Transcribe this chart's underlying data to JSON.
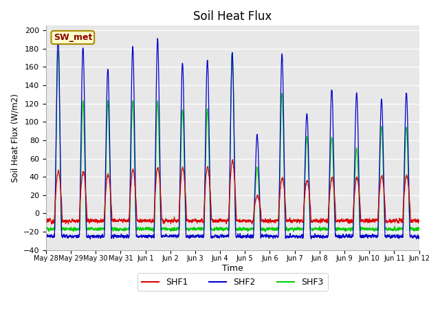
{
  "title": "Soil Heat Flux",
  "ylabel": "Soil Heat Flux (W/m2)",
  "xlabel": "Time",
  "ylim": [
    -40,
    205
  ],
  "yticks": [
    -40,
    -20,
    0,
    20,
    40,
    60,
    80,
    100,
    120,
    140,
    160,
    180,
    200
  ],
  "background_color": "#e8e8e8",
  "fig_background": "#ffffff",
  "colors": {
    "SHF1": "#dd0000",
    "SHF2": "#0000cc",
    "SHF3": "#00cc00"
  },
  "x_tick_labels": [
    "May 28",
    "May 29",
    "May 30",
    "May 31",
    "Jun 1",
    "Jun 2",
    "Jun 3",
    "Jun 4",
    "Jun 5",
    "Jun 6",
    "Jun 7",
    "Jun 8",
    "Jun 9",
    "Jun 10",
    "Jun 11",
    "Jun 12"
  ],
  "n_days": 15,
  "points_per_day": 144,
  "shf1_peaks": [
    46,
    46,
    43,
    47,
    50,
    50,
    51,
    58,
    19,
    39,
    36,
    39,
    39,
    40,
    41
  ],
  "shf2_peaks": [
    195,
    183,
    158,
    182,
    191,
    165,
    168,
    175,
    85,
    175,
    110,
    136,
    132,
    125,
    132
  ],
  "shf3_peaks": [
    178,
    122,
    121,
    123,
    123,
    114,
    114,
    176,
    50,
    131,
    84,
    84,
    71,
    94,
    94
  ],
  "shf1_night": -8,
  "shf2_night": -25,
  "shf3_night": -17,
  "sw_met_label": "SW_met"
}
